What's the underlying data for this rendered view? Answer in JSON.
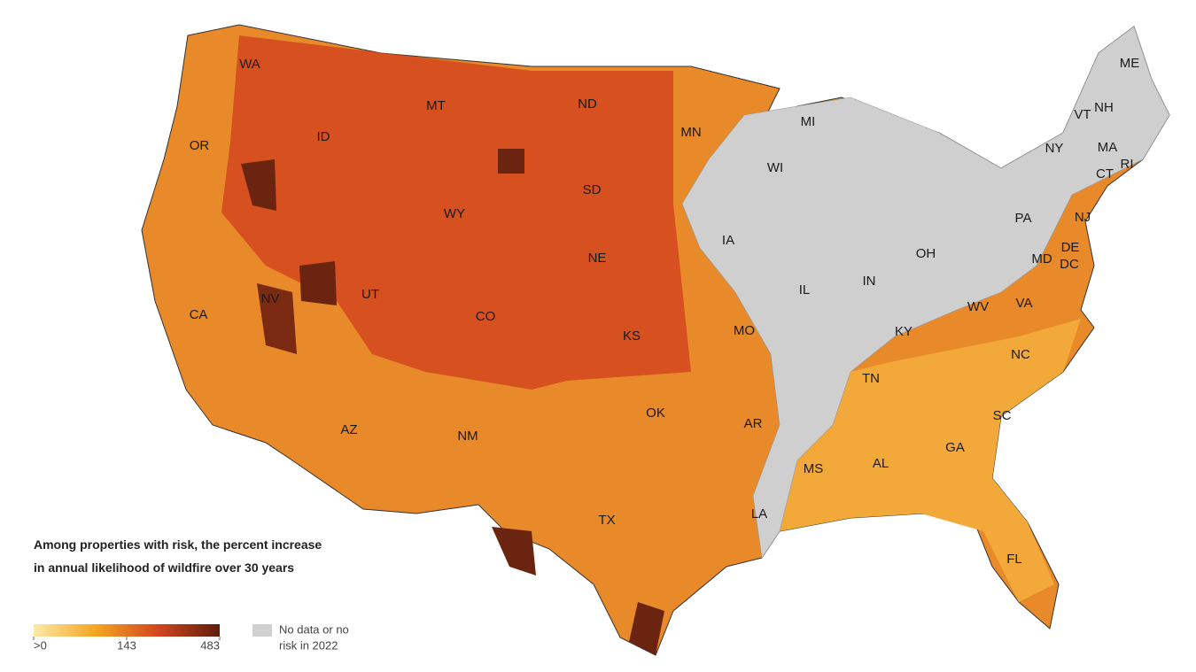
{
  "title_lines": [
    "Among properties with risk, the percent increase",
    "in annual likelihood of wildfire over 30 years"
  ],
  "legend": {
    "ticks": [
      {
        "value": 0,
        "label": ">0"
      },
      143,
      483
    ],
    "colors": [
      "#fde9a8",
      "#f5a623",
      "#d2461f",
      "#5e1d0c"
    ],
    "no_data": {
      "label_lines": [
        "No data or no",
        "risk in 2022"
      ],
      "color": "#cfcfcf"
    }
  },
  "states": [
    "WA",
    "OR",
    "ID",
    "MT",
    "ND",
    "MN",
    "WI",
    "MI",
    "ME",
    "VT",
    "NH",
    "NY",
    "MA",
    "RI",
    "CT",
    "NJ",
    "PA",
    "DE",
    "MD",
    "DC",
    "OH",
    "IN",
    "IL",
    "IA",
    "SD",
    "WY",
    "NE",
    "NV",
    "UT",
    "CO",
    "KS",
    "MO",
    "KY",
    "WV",
    "VA",
    "NC",
    "TN",
    "SC",
    "GA",
    "AL",
    "MS",
    "AR",
    "LA",
    "OK",
    "TX",
    "NM",
    "AZ",
    "CA",
    "FL"
  ]
}
